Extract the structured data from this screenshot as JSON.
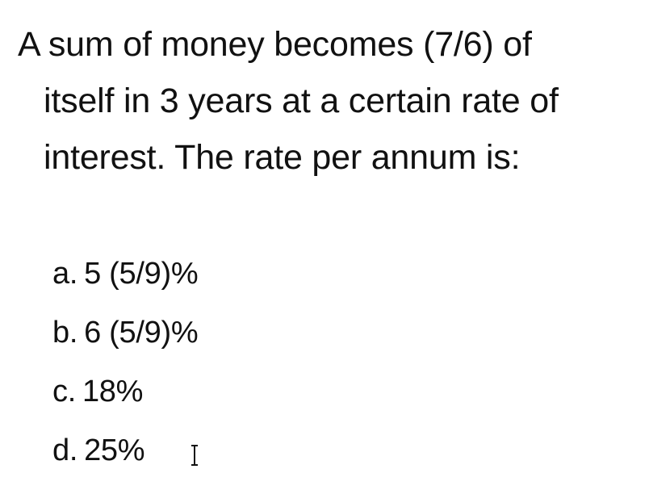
{
  "question": {
    "lines": [
      "A sum of money becomes (7/6) of",
      "itself in 3 years at a certain rate of",
      "interest. The rate per annum is:"
    ]
  },
  "options": [
    {
      "letter": "a.",
      "text": "5 (5/9)%"
    },
    {
      "letter": "b.",
      "text": "6 (5/9)%"
    },
    {
      "letter": "c.",
      "text": "18%"
    },
    {
      "letter": "d.",
      "text": "25%"
    }
  ],
  "cursor": {
    "icon": "text-cursor-icon",
    "color": "#111111"
  }
}
